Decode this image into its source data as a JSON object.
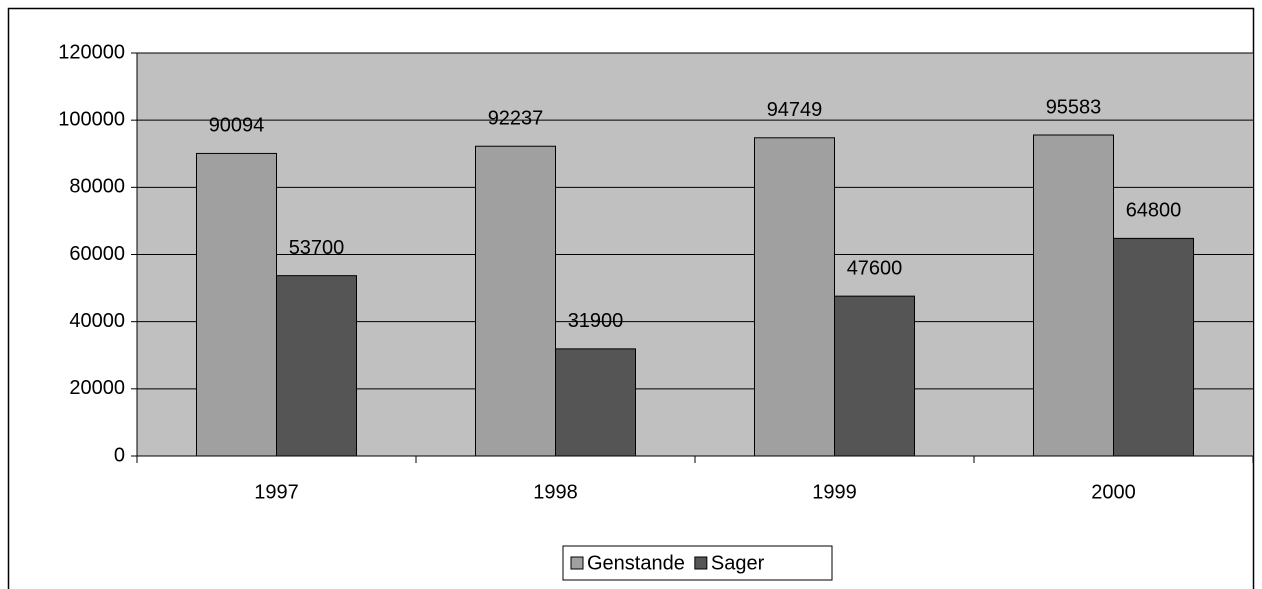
{
  "chart_data": {
    "type": "bar",
    "categories": [
      "1997",
      "1998",
      "1999",
      "2000"
    ],
    "series": [
      {
        "name": "Genstande",
        "color": "#a0a0a0",
        "values": [
          90094,
          92237,
          94749,
          95583
        ]
      },
      {
        "name": "Sager",
        "color": "#555555",
        "values": [
          53700,
          31900,
          47600,
          64800
        ]
      }
    ],
    "ylim": [
      0,
      120000
    ],
    "yticks": [
      0,
      20000,
      40000,
      60000,
      80000,
      100000,
      120000
    ],
    "grid": true,
    "legend": "bottom",
    "background": "#c0c0c0"
  }
}
